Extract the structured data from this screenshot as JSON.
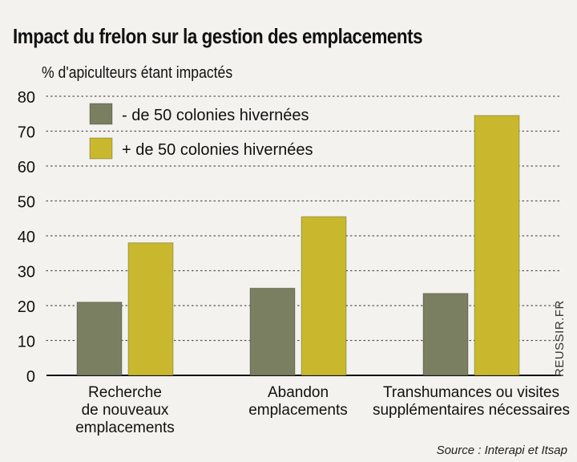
{
  "chart_data": {
    "type": "bar",
    "title": "Impact du frelon sur la gestion des emplacements",
    "ylabel": "% d'apiculteurs étant impactés",
    "xlabel": "",
    "ylim": [
      0,
      80
    ],
    "yticks": [
      0,
      10,
      20,
      30,
      40,
      50,
      60,
      70,
      80
    ],
    "grid": true,
    "legend_position": "top-left",
    "categories": [
      [
        "Recherche",
        "de nouveaux",
        "emplacements"
      ],
      [
        "Abandon",
        "emplacements"
      ],
      [
        "Transhumances ou visites",
        "supplémentaires nécessaires"
      ]
    ],
    "series": [
      {
        "name": "- de 50 colonies hivernées",
        "color": "#7a7f61",
        "values": [
          21,
          25,
          23.5
        ]
      },
      {
        "name": "+ de 50 colonies hivernées",
        "color": "#c9b82d",
        "values": [
          38,
          45.5,
          74.5
        ]
      }
    ]
  },
  "source": "Source : Interapi et Itsap",
  "watermark": "REUSSIR.FR"
}
